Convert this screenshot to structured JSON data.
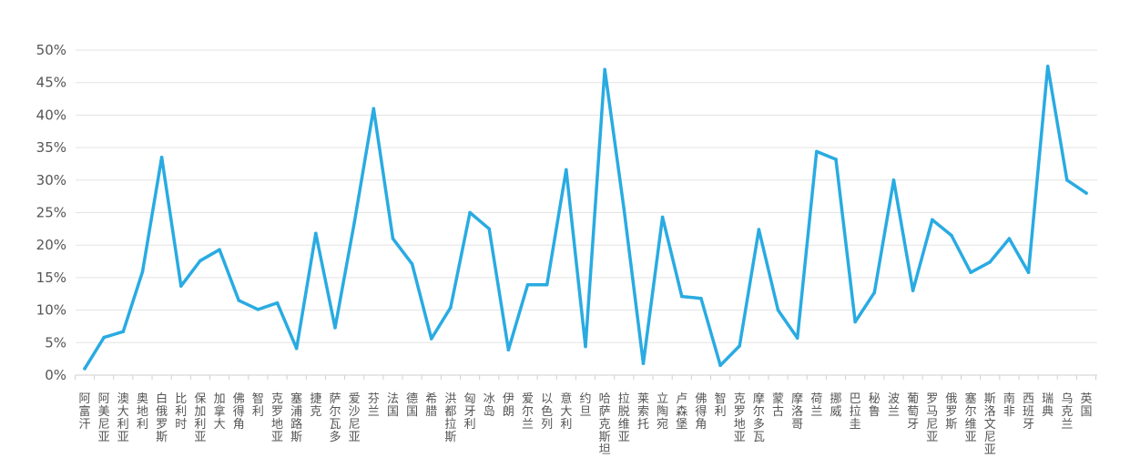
{
  "chart_data": {
    "type": "line",
    "title": "",
    "xlabel": "",
    "ylabel": "",
    "ylim": [
      0,
      50
    ],
    "y_ticks": [
      0,
      5,
      10,
      15,
      20,
      25,
      30,
      35,
      40,
      45,
      50
    ],
    "y_tick_suffix": "%",
    "grid": "horizontal",
    "legend": "none",
    "line_color": "#29abe2",
    "categories": [
      "阿富汗",
      "阿美尼亚",
      "澳大利亚",
      "奥地利",
      "白俄罗斯",
      "比利时",
      "保加利亚",
      "加拿大",
      "佛得角",
      "智利",
      "克罗地亚",
      "塞浦路斯",
      "捷克",
      "萨尔瓦多",
      "爱沙尼亚",
      "芬兰",
      "法国",
      "德国",
      "希腊",
      "洪都拉斯",
      "匈牙利",
      "冰岛",
      "伊朗",
      "爱尔兰",
      "以色列",
      "意大利",
      "约旦",
      "哈萨克斯坦",
      "拉脱维亚",
      "莱索托",
      "立陶宛",
      "卢森堡",
      "佛得角",
      "智利",
      "克罗地亚",
      "摩尔多瓦",
      "蒙古",
      "摩洛哥",
      "荷兰",
      "挪威",
      "巴拉圭",
      "秘鲁",
      "波兰",
      "葡萄牙",
      "罗马尼亚",
      "俄罗斯",
      "塞尔维亚",
      "斯洛文尼亚",
      "南非",
      "西班牙",
      "瑞典",
      "乌克兰",
      "英国"
    ],
    "series": [
      {
        "values": [
          1,
          5.8,
          6.7,
          15.9,
          33.5,
          13.7,
          17.6,
          19.3,
          11.5,
          10.1,
          11.1,
          4.1,
          21.8,
          7.3,
          23.5,
          41,
          21,
          17.1,
          5.6,
          10.4,
          25,
          22.5,
          3.9,
          13.9,
          13.9,
          31.6,
          4.4,
          47,
          25.5,
          1.8,
          24.3,
          12.1,
          11.8,
          1.5,
          4.5,
          22.4,
          10,
          5.7,
          34.4,
          33.2,
          8.2,
          12.7,
          30,
          13,
          23.9,
          21.5,
          15.8,
          17.4,
          21,
          15.8,
          47.5,
          30,
          28
        ]
      }
    ]
  }
}
